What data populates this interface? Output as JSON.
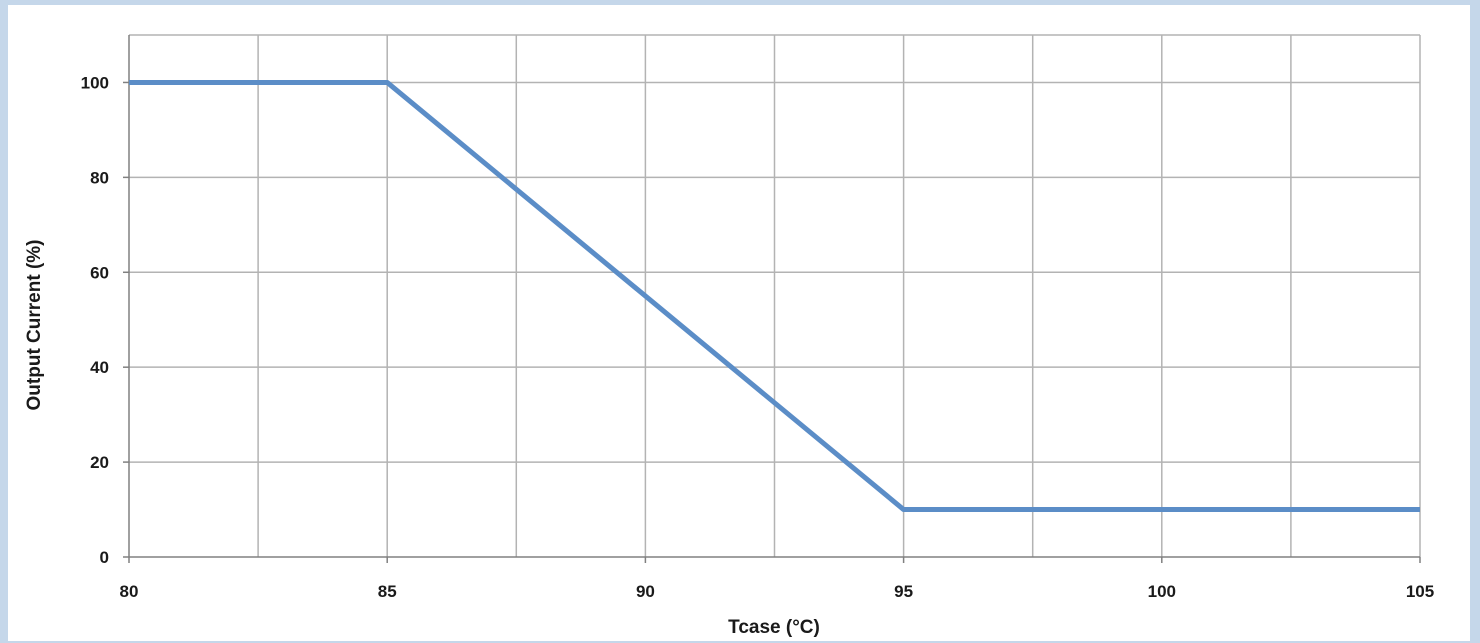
{
  "chart_data": {
    "type": "line",
    "xlabel": "Tcase (°C)",
    "ylabel": "Output Current (%)",
    "xlim": [
      80,
      105
    ],
    "ylim": [
      0,
      110
    ],
    "x_ticks": [
      80,
      85,
      90,
      95,
      100,
      105
    ],
    "y_ticks": [
      0,
      20,
      40,
      60,
      80,
      100
    ],
    "x_minor_step": 2.5,
    "grid": true,
    "series": [
      {
        "x": [
          80,
          85,
          95,
          105
        ],
        "y": [
          100,
          100,
          10,
          10
        ]
      }
    ],
    "colors": {
      "line": "#5b8dc7",
      "grid": "#b3b3b3",
      "axis": "#808080",
      "background": "#c5d7ea"
    }
  }
}
